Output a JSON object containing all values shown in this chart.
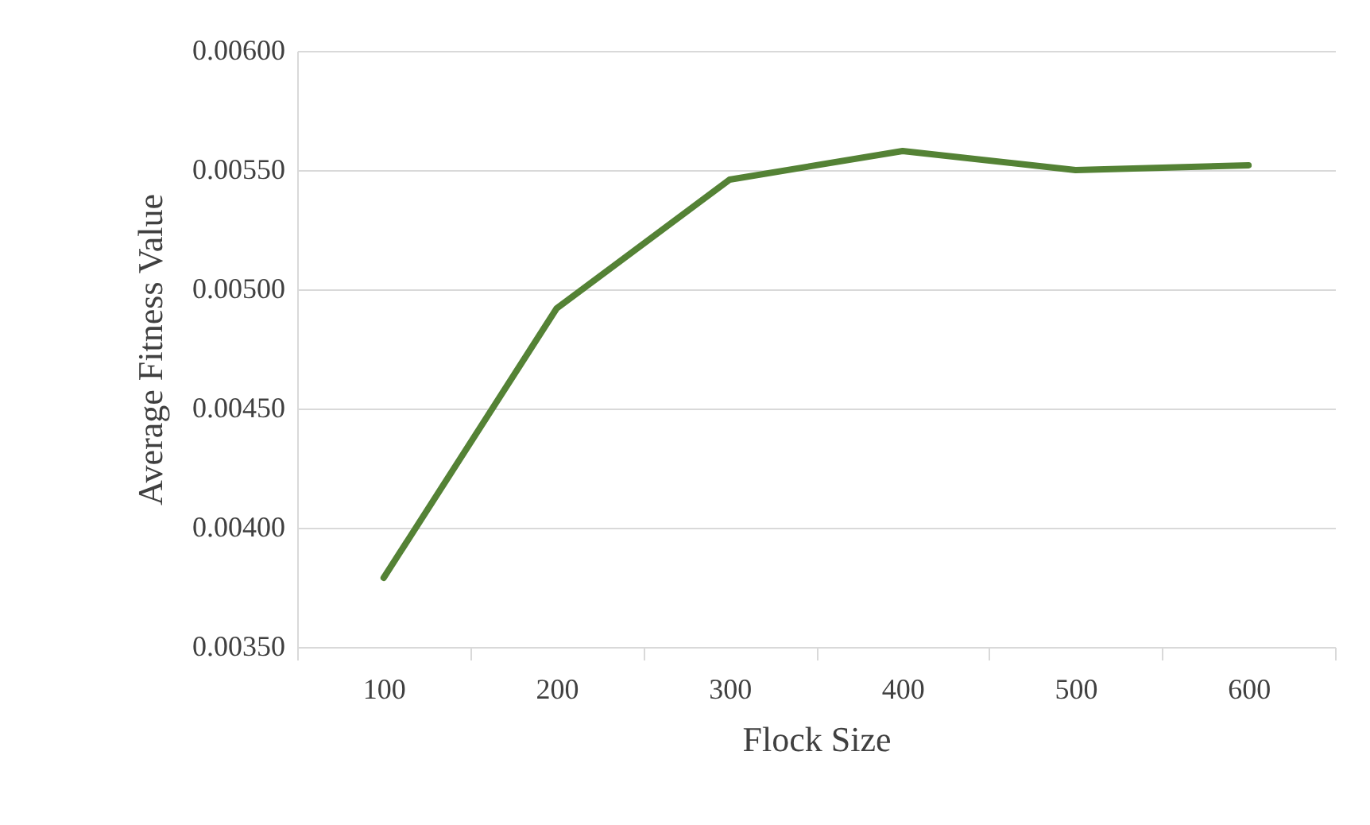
{
  "chart_data": {
    "type": "line",
    "xlabel": "Flock Size",
    "ylabel": "Average Fitness Value",
    "categories": [
      "100",
      "200",
      "300",
      "400",
      "500",
      "600"
    ],
    "series": [
      {
        "color": "#548235",
        "values": [
          0.00379,
          0.00492,
          0.00546,
          0.00558,
          0.0055,
          0.00552
        ]
      }
    ],
    "ylim": [
      0.0035,
      0.006
    ],
    "yticks": [
      {
        "value": 0.0035,
        "label": "0.00350"
      },
      {
        "value": 0.004,
        "label": "0.00400"
      },
      {
        "value": 0.0045,
        "label": "0.00450"
      },
      {
        "value": 0.005,
        "label": "0.00500"
      },
      {
        "value": 0.0055,
        "label": "0.00550"
      },
      {
        "value": 0.006,
        "label": "0.00600"
      }
    ],
    "grid": "y",
    "legend": false,
    "marker": "none",
    "line_style": "solid"
  }
}
